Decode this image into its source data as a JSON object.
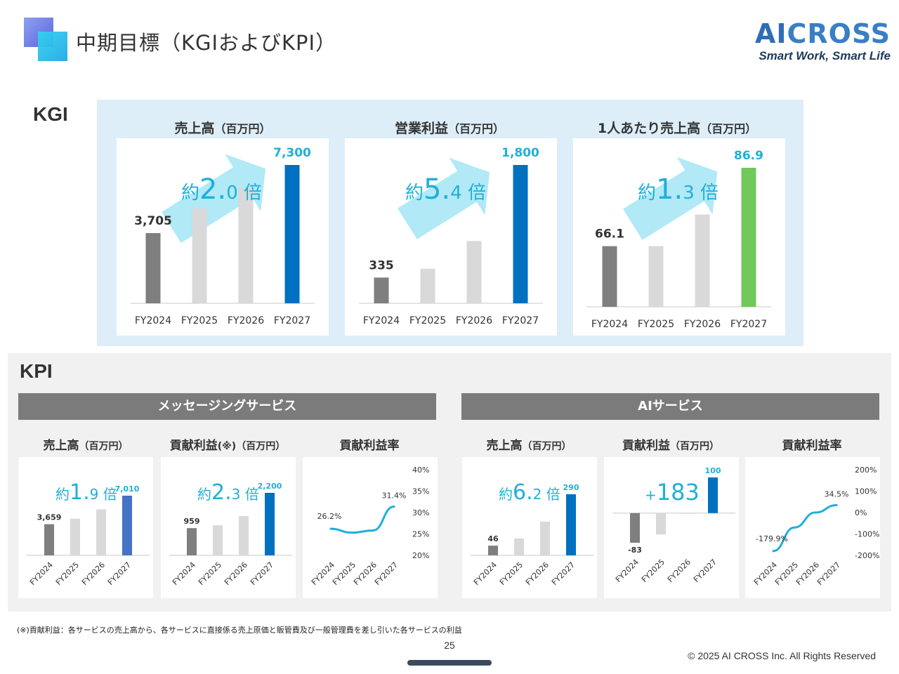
{
  "header": {
    "title": "中期目標（KGIおよびKPI）",
    "brand_ai": "AI",
    "brand_cross": "CROSS",
    "brand_tagline": "Smart Work, Smart Life",
    "logo_icon": "overlapping-squares-icon"
  },
  "colors": {
    "gray_dark": "#7f7f7f",
    "gray_light": "#d9d9d9",
    "blue": "#0070c0",
    "indigo": "#4472c4",
    "green": "#70c95a",
    "cyan": "#1fb0d8",
    "arrow": "#a9e7f5",
    "kgi_bg": "#ddeef9",
    "kpi_bg": "#f1f1f1",
    "band": "#7b7b7b"
  },
  "kgi": {
    "label": "KGI",
    "charts": [
      {
        "title": "売上高",
        "unit": "（百万円）",
        "mult_prefix": "約",
        "mult_big": "2.",
        "mult_small": "0",
        "mult_suffix": " 倍"
      },
      {
        "title": "営業利益",
        "unit": "（百万円）",
        "mult_prefix": "約",
        "mult_big": "5.",
        "mult_small": "4",
        "mult_suffix": "  倍"
      },
      {
        "title": "1人あたり売上高",
        "unit": "（百万円）",
        "mult_prefix": "約",
        "mult_big": "1.",
        "mult_small": "3",
        "mult_suffix": " 倍"
      }
    ]
  },
  "kpi": {
    "label": "KPI",
    "bands": [
      "メッセージングサービス",
      "AIサービス"
    ],
    "charts": [
      {
        "title": "売上高",
        "unit": "（百万円）",
        "mult_prefix": "約",
        "mult_big": "1.",
        "mult_small": "9",
        "mult_suffix": " 倍"
      },
      {
        "title": "貢献利益",
        "note": "(※)",
        "unit": "（百万円）",
        "mult_prefix": "約",
        "mult_big": "2.",
        "mult_small": "3",
        "mult_suffix": " 倍"
      },
      {
        "title": "貢献利益率",
        "unit": ""
      },
      {
        "title": "売上高",
        "unit": "（百万円）",
        "mult_prefix": "約",
        "mult_big": "6.",
        "mult_small": "2",
        "mult_suffix": " 倍"
      },
      {
        "title": "貢献利益",
        "unit": "（百万円）",
        "mult_prefix": "+",
        "mult_big": "183",
        "mult_small": "",
        "mult_suffix": ""
      },
      {
        "title": "貢献利益率",
        "unit": ""
      }
    ]
  },
  "chart_data": [
    {
      "id": "kgi_sales",
      "type": "bar",
      "categories": [
        "FY2024",
        "FY2025",
        "FY2026",
        "FY2027"
      ],
      "values": [
        3705,
        5000,
        6100,
        7300
      ],
      "labels": [
        "3,705",
        null,
        null,
        "7,300"
      ],
      "ylim": [
        0,
        7300
      ]
    },
    {
      "id": "kgi_op",
      "type": "bar",
      "categories": [
        "FY2024",
        "FY2025",
        "FY2026",
        "FY2027"
      ],
      "values": [
        335,
        450,
        810,
        1800
      ],
      "labels": [
        "335",
        null,
        null,
        "1,800"
      ],
      "ylim": [
        0,
        1800
      ]
    },
    {
      "id": "kgi_per",
      "type": "bar",
      "categories": [
        "FY2024",
        "FY2025",
        "FY2026",
        "FY2027"
      ],
      "values": [
        66.1,
        66.1,
        74.5,
        86.9
      ],
      "labels": [
        "66.1",
        null,
        null,
        "86.9"
      ],
      "ylim": [
        50,
        86.9
      ]
    },
    {
      "id": "msg_sales",
      "type": "bar",
      "categories": [
        "FY2024",
        "FY2025",
        "FY2026",
        "FY2027"
      ],
      "values": [
        3659,
        4300,
        5400,
        7010
      ],
      "labels": [
        "3,659",
        null,
        null,
        "7,010"
      ],
      "ylim": [
        0,
        7010
      ]
    },
    {
      "id": "msg_contrib",
      "type": "bar",
      "categories": [
        "FY2024",
        "FY2025",
        "FY2026",
        "FY2027"
      ],
      "values": [
        959,
        1060,
        1380,
        2200
      ],
      "labels": [
        "959",
        null,
        null,
        "2,200"
      ],
      "ylim": [
        0,
        2200
      ]
    },
    {
      "id": "msg_rate",
      "type": "line",
      "categories": [
        "FY2024",
        "FY2025",
        "FY2026",
        "FY2027"
      ],
      "values": [
        26.2,
        25.3,
        25.8,
        31.4
      ],
      "labels": [
        "26.2%",
        null,
        null,
        "31.4%"
      ],
      "ylim": [
        20,
        40
      ],
      "yticks": [
        "40%",
        "35%",
        "30%",
        "25%",
        "20%"
      ]
    },
    {
      "id": "ai_sales",
      "type": "bar",
      "categories": [
        "FY2024",
        "FY2025",
        "FY2026",
        "FY2027"
      ],
      "values": [
        46,
        80,
        160,
        290
      ],
      "labels": [
        "46",
        null,
        null,
        "290"
      ],
      "ylim": [
        0,
        290
      ]
    },
    {
      "id": "ai_contrib",
      "type": "bar",
      "categories": [
        "FY2024",
        "FY2025",
        "FY2026",
        "FY2027"
      ],
      "values": [
        -83,
        -60,
        0,
        100
      ],
      "labels": [
        "-83",
        null,
        null,
        "100"
      ],
      "ylim": [
        -83,
        100
      ]
    },
    {
      "id": "ai_rate",
      "type": "line",
      "categories": [
        "FY2024",
        "FY2025",
        "FY2026",
        "FY2027"
      ],
      "values": [
        -179.9,
        -70,
        0,
        34.5
      ],
      "labels": [
        "-179.9%",
        null,
        null,
        "34.5%"
      ],
      "ylim": [
        -200,
        200
      ],
      "yticks": [
        "200%",
        "100%",
        "0%",
        "-100%",
        "-200%"
      ]
    }
  ],
  "footer": {
    "footnote": "(※)貢献利益：各サービスの売上高から、各サービスに直接係る売上原価と販管費及び一般管理費を差し引いた各サービスの利益",
    "page": "25",
    "copyright": "© 2025 AI CROSS Inc. All Rights Reserved"
  }
}
